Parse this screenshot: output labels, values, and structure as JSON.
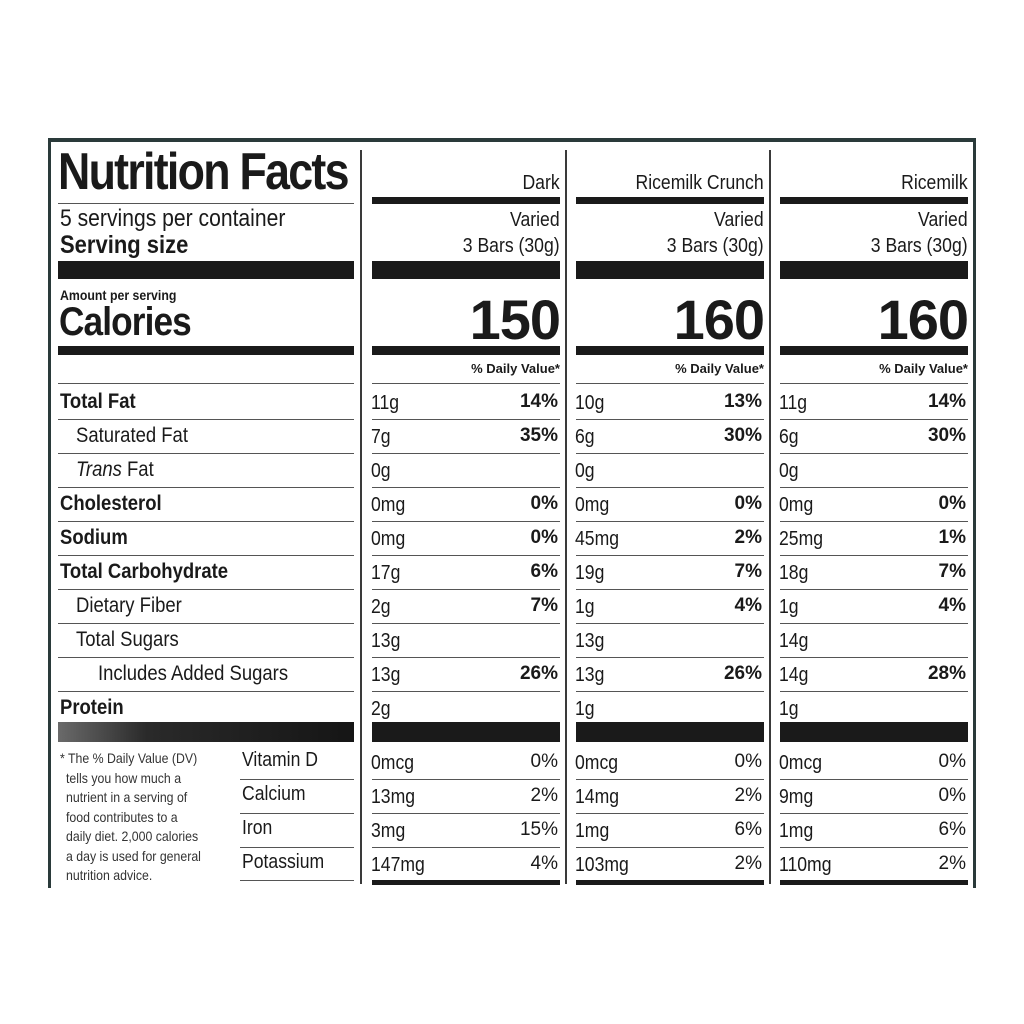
{
  "label": {
    "title": "Nutrition Facts",
    "servings": "5 servings per container",
    "serving_size_label": "Serving size",
    "amount_per_serving": "Amount per serving",
    "calories_label": "Calories",
    "dv_header": "% Daily Value*",
    "footnote": [
      "* The % Daily Value (DV)",
      "tells you how much a",
      "nutrient in a serving of",
      "food contributes to a",
      "daily diet. 2,000 calories",
      "a day is used for general",
      "nutrition advice."
    ]
  },
  "products": [
    {
      "name": "Dark",
      "variety": "Varied",
      "serving": "3 Bars (30g)",
      "calories": "150"
    },
    {
      "name": "Ricemilk Crunch",
      "variety": "Varied",
      "serving": "3 Bars (30g)",
      "calories": "160"
    },
    {
      "name": "Ricemilk",
      "variety": "Varied",
      "serving": "3 Bars (30g)",
      "calories": "160"
    }
  ],
  "nutrients": [
    {
      "label": "Total Fat",
      "values": [
        [
          "11g",
          "14%"
        ],
        [
          "10g",
          "13%"
        ],
        [
          "11g",
          "14%"
        ]
      ]
    },
    {
      "label": "Saturated Fat",
      "values": [
        [
          "7g",
          "35%"
        ],
        [
          "6g",
          "30%"
        ],
        [
          "6g",
          "30%"
        ]
      ]
    },
    {
      "label_italic": "Trans",
      "label": " Fat",
      "values": [
        [
          "0g",
          ""
        ],
        [
          "0g",
          ""
        ],
        [
          "0g",
          ""
        ]
      ]
    },
    {
      "label": "Cholesterol",
      "values": [
        [
          "0mg",
          "0%"
        ],
        [
          "0mg",
          "0%"
        ],
        [
          "0mg",
          "0%"
        ]
      ]
    },
    {
      "label": "Sodium",
      "values": [
        [
          "0mg",
          "0%"
        ],
        [
          "45mg",
          "2%"
        ],
        [
          "25mg",
          "1%"
        ]
      ]
    },
    {
      "label": "Total Carbohydrate",
      "values": [
        [
          "17g",
          "6%"
        ],
        [
          "19g",
          "7%"
        ],
        [
          "18g",
          "7%"
        ]
      ]
    },
    {
      "label": "Dietary Fiber",
      "values": [
        [
          "2g",
          "7%"
        ],
        [
          "1g",
          "4%"
        ],
        [
          "1g",
          "4%"
        ]
      ]
    },
    {
      "label": "Total Sugars",
      "values": [
        [
          "13g",
          ""
        ],
        [
          "13g",
          ""
        ],
        [
          "14g",
          ""
        ]
      ]
    },
    {
      "label": "Includes Added Sugars",
      "values": [
        [
          "13g",
          "26%"
        ],
        [
          "13g",
          "26%"
        ],
        [
          "14g",
          "28%"
        ]
      ]
    },
    {
      "label": "Protein",
      "values": [
        [
          "2g",
          ""
        ],
        [
          "1g",
          ""
        ],
        [
          "1g",
          ""
        ]
      ]
    }
  ],
  "vitamins": [
    {
      "label": "Vitamin D",
      "values": [
        [
          "0mcg",
          "0%"
        ],
        [
          "0mcg",
          "0%"
        ],
        [
          "0mcg",
          "0%"
        ]
      ]
    },
    {
      "label": "Calcium",
      "values": [
        [
          "13mg",
          "2%"
        ],
        [
          "14mg",
          "2%"
        ],
        [
          "9mg",
          "0%"
        ]
      ]
    },
    {
      "label": "Iron",
      "values": [
        [
          "3mg",
          "15%"
        ],
        [
          "1mg",
          "6%"
        ],
        [
          "1mg",
          "6%"
        ]
      ]
    },
    {
      "label": "Potassium",
      "values": [
        [
          "147mg",
          "4%"
        ],
        [
          "103mg",
          "2%"
        ],
        [
          "110mg",
          "2%"
        ]
      ]
    }
  ]
}
